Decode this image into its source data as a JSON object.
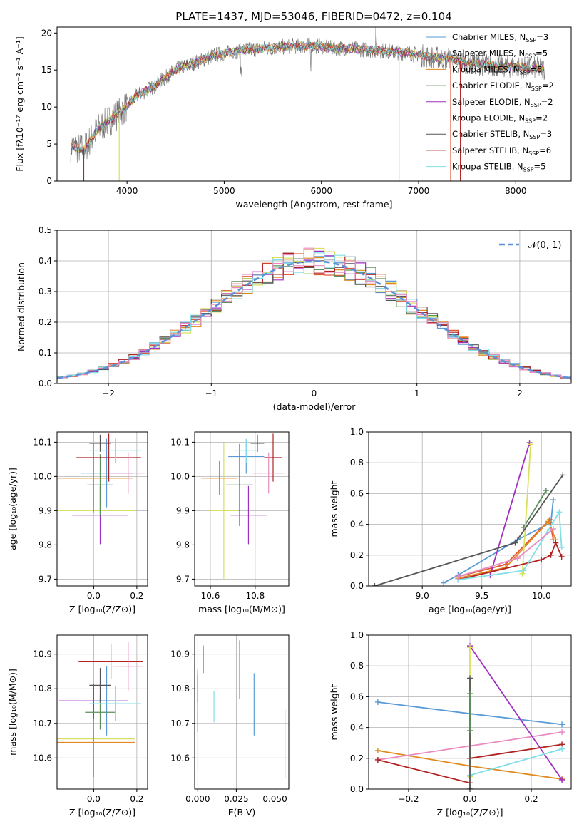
{
  "colors": {
    "frame": "#000000",
    "grid": "#b0b0b0",
    "normal_curve": "#5b8fd6"
  },
  "chart_data": [
    {
      "type": "line",
      "title": "PLATE=1437, MJD=53046, FIBERID=0472, z=0.104",
      "xlabel": "wavelength [Angstrom, rest frame]",
      "ylabel": "Flux [fλ10⁻¹⁷ erg cm⁻² s⁻¹ A⁻¹]",
      "xlim": [
        3280,
        8570
      ],
      "ylim": [
        0,
        20.8
      ],
      "xticks": [
        "4000",
        "5000",
        "6000",
        "7000",
        "8000"
      ],
      "yticks": [
        "0",
        "5",
        "10",
        "15",
        "20"
      ],
      "grid": false,
      "legend": "right",
      "spectrum_anchors": [
        [
          3420,
          4.8
        ],
        [
          3550,
          4.2
        ],
        [
          3700,
          7.0
        ],
        [
          3850,
          8.5
        ],
        [
          3950,
          9.5
        ],
        [
          4100,
          11.5
        ],
        [
          4300,
          13.0
        ],
        [
          4500,
          15.0
        ],
        [
          4700,
          16.0
        ],
        [
          4900,
          17.0
        ],
        [
          5100,
          17.5
        ],
        [
          5300,
          17.8
        ],
        [
          5500,
          18.0
        ],
        [
          5700,
          18.2
        ],
        [
          5900,
          18.3
        ],
        [
          6100,
          18.0
        ],
        [
          6300,
          17.9
        ],
        [
          6500,
          17.7
        ],
        [
          6700,
          17.5
        ],
        [
          6900,
          17.3
        ],
        [
          7100,
          16.8
        ],
        [
          7300,
          16.5
        ],
        [
          7500,
          16.0
        ],
        [
          7700,
          15.7
        ],
        [
          7900,
          15.5
        ],
        [
          8100,
          15.3
        ],
        [
          8300,
          15.2
        ]
      ],
      "series": [
        {
          "name": "Chabrier MILES, N",
          "sub": "SSP",
          "suffix": "=3",
          "color": "#5a9bd5"
        },
        {
          "name": "Salpeter MILES, N",
          "sub": "SSP",
          "suffix": "=5",
          "color": "#e05a3a"
        },
        {
          "name": "Kroupa MILES, N",
          "sub": "SSP",
          "suffix": "=5",
          "color": "#e08a1e"
        },
        {
          "name": "Chabrier ELODIE, N",
          "sub": "SSP",
          "suffix": "=2",
          "color": "#5b8f5b"
        },
        {
          "name": "Salpeter ELODIE, N",
          "sub": "SSP",
          "suffix": "=2",
          "color": "#a030c0"
        },
        {
          "name": "Kroupa ELODIE, N",
          "sub": "SSP",
          "suffix": "=2",
          "color": "#d8e060"
        },
        {
          "name": "Chabrier STELIB, N",
          "sub": "SSP",
          "suffix": "=3",
          "color": "#555555"
        },
        {
          "name": "Salpeter STELIB, N",
          "sub": "SSP",
          "suffix": "=6",
          "color": "#b22222"
        },
        {
          "name": "Kroupa STELIB, N",
          "sub": "SSP",
          "suffix": "=5",
          "color": "#80dfe8"
        }
      ]
    },
    {
      "type": "histogram",
      "xlabel": "(data-model)/error",
      "ylabel": "Normed distribution",
      "xlim": [
        -2.5,
        2.5
      ],
      "ylim": [
        0,
        0.5
      ],
      "xticks": [
        "−2",
        "−1",
        "0",
        "1",
        "2"
      ],
      "yticks": [
        "0.0",
        "0.1",
        "0.2",
        "0.3",
        "0.4",
        "0.5"
      ],
      "grid": true,
      "legend": "top-right",
      "legend_label": "𝒩(0, 1)",
      "bin_edges_range": [
        -2.6,
        2.6
      ],
      "bin_width": 0.1,
      "histogram_series_colors": [
        "#5a9bd5",
        "#e05a3a",
        "#e08a1e",
        "#5b8f5b",
        "#a030c0",
        "#d8e060",
        "#555555",
        "#b22222",
        "#80dfe8",
        "#e88ac0"
      ]
    },
    {
      "type": "scatter",
      "xlabel": "Z [log₁₀(Z/Z⊙)]",
      "ylabel": "age  [log₁₀(age/yr)]",
      "xlim": [
        -0.17,
        0.25
      ],
      "ylim": [
        9.68,
        10.13
      ],
      "xticks": [
        "0.0",
        "0.2"
      ],
      "yticks": [
        "9.7",
        "9.8",
        "9.9",
        "10.0",
        "10.1"
      ],
      "grid": true,
      "points": [
        {
          "x": 0.0,
          "y": 9.9,
          "xerr": 0.19,
          "yerr": 0.2,
          "color": "#d8e060"
        },
        {
          "x": 0.03,
          "y": 9.887,
          "xerr": 0.13,
          "yerr": 0.085,
          "color": "#a030c0"
        },
        {
          "x": 0.06,
          "y": 10.01,
          "xerr": 0.12,
          "yerr": 0.1,
          "color": "#5a9bd5"
        },
        {
          "x": 0.03,
          "y": 9.975,
          "xerr": 0.06,
          "yerr": 0.09,
          "color": "#5b8f5b"
        },
        {
          "x": 0.0,
          "y": 9.995,
          "xerr": 0.18,
          "yerr": 0.1,
          "color": "#e08a1e"
        },
        {
          "x": 0.03,
          "y": 10.097,
          "xerr": 0.05,
          "yerr": 0.025,
          "color": "#555555"
        },
        {
          "x": 0.07,
          "y": 10.055,
          "xerr": 0.15,
          "yerr": 0.07,
          "color": "#b22222"
        },
        {
          "x": 0.1,
          "y": 10.075,
          "xerr": 0.12,
          "yerr": 0.035,
          "color": "#80dfe8"
        },
        {
          "x": 0.16,
          "y": 10.01,
          "xerr": 0.08,
          "yerr": 0.06,
          "color": "#e88ac0"
        }
      ]
    },
    {
      "type": "scatter",
      "xlabel": "mass [log₁₀(M/M⊙)]",
      "ylabel": "",
      "xlim": [
        10.53,
        10.95
      ],
      "ylim": [
        9.68,
        10.13
      ],
      "xticks": [
        "10.6",
        "10.8"
      ],
      "yticks": [
        "9.7",
        "9.8",
        "9.9",
        "10.0",
        "10.1"
      ],
      "grid": true,
      "points": [
        {
          "x": 10.66,
          "y": 9.9,
          "xerr": 0.06,
          "yerr": 0.2,
          "color": "#d8e060"
        },
        {
          "x": 10.77,
          "y": 9.887,
          "xerr": 0.08,
          "yerr": 0.085,
          "color": "#a030c0"
        },
        {
          "x": 10.76,
          "y": 10.058,
          "xerr": 0.08,
          "yerr": 0.05,
          "color": "#5a9bd5"
        },
        {
          "x": 10.73,
          "y": 9.975,
          "xerr": 0.06,
          "yerr": 0.12,
          "color": "#5b8f5b"
        },
        {
          "x": 10.64,
          "y": 9.995,
          "xerr": 0.08,
          "yerr": 0.05,
          "color": "#e08a1e"
        },
        {
          "x": 10.81,
          "y": 10.097,
          "xerr": 0.03,
          "yerr": 0.025,
          "color": "#555555"
        },
        {
          "x": 10.88,
          "y": 10.055,
          "xerr": 0.04,
          "yerr": 0.07,
          "color": "#b22222"
        },
        {
          "x": 10.76,
          "y": 10.075,
          "xerr": 0.05,
          "yerr": 0.035,
          "color": "#80dfe8"
        },
        {
          "x": 10.86,
          "y": 10.01,
          "xerr": 0.07,
          "yerr": 0.06,
          "color": "#e88ac0"
        }
      ]
    },
    {
      "type": "line",
      "xlabel": "age  [log₁₀(age/yr)]",
      "ylabel": "mass weight",
      "xlim": [
        8.55,
        10.25
      ],
      "ylim": [
        0,
        1.0
      ],
      "xticks": [
        "9.0",
        "9.5",
        "10.0"
      ],
      "yticks": [
        "0.0",
        "0.2",
        "0.4",
        "0.6",
        "0.8",
        "1.0"
      ],
      "grid": true,
      "series": [
        {
          "color": "#5a9bd5",
          "points": [
            [
              9.18,
              0.02
            ],
            [
              9.3,
              0.07
            ],
            [
              9.8,
              0.3
            ],
            [
              10.08,
              0.41
            ],
            [
              10.1,
              0.56
            ]
          ]
        },
        {
          "color": "#e05a3a",
          "points": [
            [
              9.3,
              0.06
            ],
            [
              9.7,
              0.14
            ],
            [
              10.07,
              0.43
            ],
            [
              10.1,
              0.3
            ]
          ]
        },
        {
          "color": "#e08a1e",
          "points": [
            [
              9.3,
              0.05
            ],
            [
              9.7,
              0.12
            ],
            [
              10.06,
              0.42
            ],
            [
              10.12,
              0.3
            ]
          ]
        },
        {
          "color": "#5b8f5b",
          "points": [
            [
              9.85,
              0.38
            ],
            [
              10.04,
              0.62
            ]
          ]
        },
        {
          "color": "#a030c0",
          "points": [
            [
              9.57,
              0.07
            ],
            [
              9.9,
              0.93
            ]
          ]
        },
        {
          "color": "#d8e060",
          "points": [
            [
              9.84,
              0.08
            ],
            [
              9.91,
              0.92
            ]
          ]
        },
        {
          "color": "#555555",
          "points": [
            [
              8.6,
              0.0
            ],
            [
              9.78,
              0.28
            ],
            [
              10.18,
              0.72
            ]
          ]
        },
        {
          "color": "#b22222",
          "points": [
            [
              9.3,
              0.04
            ],
            [
              10.0,
              0.17
            ],
            [
              10.08,
              0.2
            ],
            [
              10.12,
              0.28
            ],
            [
              10.17,
              0.19
            ]
          ]
        },
        {
          "color": "#80dfe8",
          "points": [
            [
              9.3,
              0.04
            ],
            [
              9.85,
              0.1
            ],
            [
              10.05,
              0.35
            ],
            [
              10.15,
              0.48
            ],
            [
              10.17,
              0.25
            ]
          ]
        },
        {
          "color": "#e88ac0",
          "points": [
            [
              9.3,
              0.06
            ],
            [
              9.8,
              0.18
            ],
            [
              10.1,
              0.37
            ]
          ]
        }
      ]
    },
    {
      "type": "scatter",
      "xlabel": "Z [log₁₀(Z/Z⊙)]",
      "ylabel": "mass [log₁₀(M/M⊙)]",
      "xlim": [
        -0.17,
        0.25
      ],
      "ylim": [
        10.51,
        10.955
      ],
      "xticks": [
        "0.0",
        "0.2"
      ],
      "yticks": [
        "10.6",
        "10.7",
        "10.8",
        "10.9"
      ],
      "grid": true,
      "points": [
        {
          "x": 0.0,
          "y": 10.655,
          "xerr": 0.19,
          "yerr": 0.05,
          "color": "#d8e060"
        },
        {
          "x": 0.0,
          "y": 10.645,
          "xerr": 0.19,
          "yerr": 0.1,
          "color": "#e08a1e"
        },
        {
          "x": 0.0,
          "y": 10.765,
          "xerr": 0.16,
          "yerr": 0.05,
          "color": "#a030c0"
        },
        {
          "x": 0.06,
          "y": 10.765,
          "xerr": 0.06,
          "yerr": 0.1,
          "color": "#5a9bd5"
        },
        {
          "x": 0.03,
          "y": 10.732,
          "xerr": 0.07,
          "yerr": 0.05,
          "color": "#5b8f5b"
        },
        {
          "x": 0.03,
          "y": 10.81,
          "xerr": 0.05,
          "yerr": 0.05,
          "color": "#555555"
        },
        {
          "x": 0.08,
          "y": 10.878,
          "xerr": 0.15,
          "yerr": 0.05,
          "color": "#b22222"
        },
        {
          "x": 0.1,
          "y": 10.757,
          "xerr": 0.12,
          "yerr": 0.05,
          "color": "#80dfe8"
        },
        {
          "x": 0.16,
          "y": 10.865,
          "xerr": 0.07,
          "yerr": 0.07,
          "color": "#e88ac0"
        }
      ]
    },
    {
      "type": "scatter",
      "xlabel": "E(B-V)",
      "ylabel": "",
      "xlim": [
        -0.002,
        0.059
      ],
      "ylim": [
        10.51,
        10.955
      ],
      "xticks": [
        "0.000",
        "0.025",
        "0.050"
      ],
      "yticks": [
        "10.6",
        "10.7",
        "10.8",
        "10.9"
      ],
      "grid": true,
      "points": [
        {
          "x": 0.0,
          "y": 10.655,
          "yerr": 0.09,
          "color": "#d8e060"
        },
        {
          "x": 0.0,
          "y": 10.765,
          "yerr": 0.09,
          "color": "#a030c0"
        },
        {
          "x": 0.0,
          "y": 10.8,
          "yerr": 0.04,
          "color": "#555555"
        },
        {
          "x": 0.0035,
          "y": 10.885,
          "yerr": 0.04,
          "color": "#b22222"
        },
        {
          "x": 0.0105,
          "y": 10.748,
          "yerr": 0.045,
          "color": "#80dfe8"
        },
        {
          "x": 0.027,
          "y": 10.855,
          "yerr": 0.085,
          "color": "#e88ac0"
        },
        {
          "x": 0.0365,
          "y": 10.755,
          "yerr": 0.09,
          "color": "#5a9bd5"
        },
        {
          "x": 0.0565,
          "y": 10.64,
          "yerr": 0.1,
          "color": "#e08a1e"
        }
      ]
    },
    {
      "type": "line",
      "xlabel": "Z [log₁₀(Z/Z⊙)]",
      "ylabel": "mass weight",
      "xlim": [
        -0.33,
        0.33
      ],
      "ylim": [
        0,
        1.0
      ],
      "xticks": [
        "−0.2",
        "0.0",
        "0.2"
      ],
      "yticks": [
        "0.0",
        "0.2",
        "0.4",
        "0.6",
        "0.8",
        "1.0"
      ],
      "grid": true,
      "series": [
        {
          "color": "#5a9bd5",
          "points": [
            [
              -0.3,
              0.565
            ],
            [
              0.0,
              0.49
            ],
            [
              0.3,
              0.42
            ]
          ]
        },
        {
          "color": "#e08a1e",
          "points": [
            [
              -0.3,
              0.25
            ],
            [
              0.0,
              0.15
            ],
            [
              0.3,
              0.065
            ]
          ]
        },
        {
          "color": "#e88ac0",
          "points": [
            [
              -0.3,
              0.19
            ],
            [
              0.0,
              0.28
            ],
            [
              0.3,
              0.37
            ]
          ]
        },
        {
          "color": "#a030c0",
          "points": [
            [
              0.0,
              0.93
            ],
            [
              0.3,
              0.06
            ]
          ]
        },
        {
          "color": "#b22222",
          "points": [
            [
              -0.3,
              0.19
            ],
            [
              0.0,
              0.04
            ]
          ]
        },
        {
          "color": "#b22222",
          "points": [
            [
              0.0,
              0.2
            ],
            [
              0.3,
              0.29
            ]
          ]
        },
        {
          "color": "#80dfe8",
          "points": [
            [
              0.0,
              0.09
            ],
            [
              0.3,
              0.26
            ]
          ]
        },
        {
          "color": "#d8e060",
          "points": [
            [
              0.0,
              0.92
            ],
            [
              0.0,
              0.08
            ]
          ]
        },
        {
          "color": "#555555",
          "points": [
            [
              0.0,
              0.72
            ],
            [
              0.0,
              0.0
            ]
          ]
        },
        {
          "color": "#5b8f5b",
          "points": [
            [
              0.0,
              0.62
            ],
            [
              0.0,
              0.38
            ]
          ]
        }
      ]
    }
  ]
}
